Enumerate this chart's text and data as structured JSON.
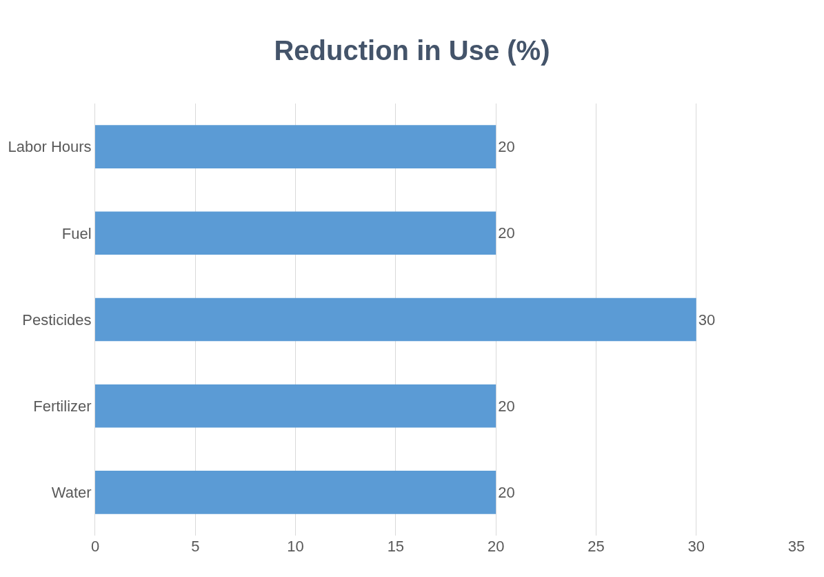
{
  "chart_data": {
    "type": "bar",
    "orientation": "horizontal",
    "title": "Reduction in Use (%)",
    "categories": [
      "Labor Hours",
      "Fuel",
      "Pesticides",
      "Fertilizer",
      "Water"
    ],
    "values": [
      20,
      20,
      30,
      20,
      20
    ],
    "color": "#5b9bd5",
    "xlim": [
      0,
      35
    ],
    "xticks": [
      0,
      5,
      10,
      15,
      20,
      25,
      30,
      35
    ],
    "grid": "x",
    "data_labels": true
  }
}
